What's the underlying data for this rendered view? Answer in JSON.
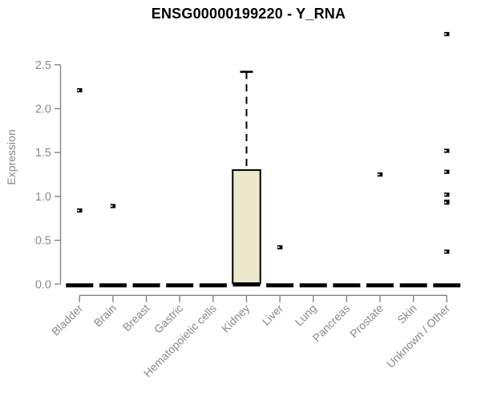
{
  "chart_data": {
    "type": "boxplot",
    "title": "ENSG00000199220 - Y_RNA",
    "ylabel": "Expression",
    "xlabel": "",
    "ylim": [
      0.0,
      2.5
    ],
    "yticks": [
      0.0,
      0.5,
      1.0,
      1.5,
      2.0,
      2.5
    ],
    "grid": false,
    "legend": "none",
    "categories": [
      "Bladder",
      "Brain",
      "Breast",
      "Gastric",
      "Hematopoietic cells",
      "Kidney",
      "Liver",
      "Lung",
      "Pancreas",
      "Prostate",
      "Skin",
      "Unknown / Other"
    ],
    "boxes": [
      {
        "category": "Bladder",
        "median": 0.0,
        "q1": 0.0,
        "q3": 0.0,
        "whisker_low": 0.0,
        "whisker_high": 0.0,
        "outliers": [
          2.21,
          0.84
        ]
      },
      {
        "category": "Brain",
        "median": 0.0,
        "q1": 0.0,
        "q3": 0.0,
        "whisker_low": 0.0,
        "whisker_high": 0.0,
        "outliers": [
          0.89
        ]
      },
      {
        "category": "Breast",
        "median": 0.0,
        "q1": 0.0,
        "q3": 0.0,
        "whisker_low": 0.0,
        "whisker_high": 0.0,
        "outliers": []
      },
      {
        "category": "Gastric",
        "median": 0.0,
        "q1": 0.0,
        "q3": 0.0,
        "whisker_low": 0.0,
        "whisker_high": 0.0,
        "outliers": []
      },
      {
        "category": "Hematopoietic cells",
        "median": 0.0,
        "q1": 0.0,
        "q3": 0.0,
        "whisker_low": 0.0,
        "whisker_high": 0.0,
        "outliers": []
      },
      {
        "category": "Kidney",
        "median": 0.01,
        "q1": 0.01,
        "q3": 1.3,
        "whisker_low": 0.01,
        "whisker_high": 2.42,
        "outliers": []
      },
      {
        "category": "Liver",
        "median": 0.0,
        "q1": 0.0,
        "q3": 0.0,
        "whisker_low": 0.0,
        "whisker_high": 0.0,
        "outliers": [
          0.42
        ]
      },
      {
        "category": "Lung",
        "median": 0.0,
        "q1": 0.0,
        "q3": 0.0,
        "whisker_low": 0.0,
        "whisker_high": 0.0,
        "outliers": []
      },
      {
        "category": "Pancreas",
        "median": 0.0,
        "q1": 0.0,
        "q3": 0.0,
        "whisker_low": 0.0,
        "whisker_high": 0.0,
        "outliers": []
      },
      {
        "category": "Prostate",
        "median": 0.0,
        "q1": 0.0,
        "q3": 0.0,
        "whisker_low": 0.0,
        "whisker_high": 0.0,
        "outliers": [
          1.25
        ]
      },
      {
        "category": "Skin",
        "median": 0.0,
        "q1": 0.0,
        "q3": 0.0,
        "whisker_low": 0.0,
        "whisker_high": 0.0,
        "outliers": []
      },
      {
        "category": "Unknown / Other",
        "median": 0.0,
        "q1": 0.0,
        "q3": 0.0,
        "whisker_low": 0.0,
        "whisker_high": 0.0,
        "outliers": [
          2.85,
          1.52,
          1.28,
          1.02,
          0.94,
          0.93,
          0.37
        ]
      }
    ],
    "colors": {
      "box_fill": "#ede8cc",
      "box_stroke": "#000000",
      "median_color": "#000000",
      "outlier_color": "#000000",
      "axis_color": "#848484",
      "tick_text_color": "#8a8a8a",
      "title_color": "#000000",
      "background": "#ffffff"
    }
  }
}
